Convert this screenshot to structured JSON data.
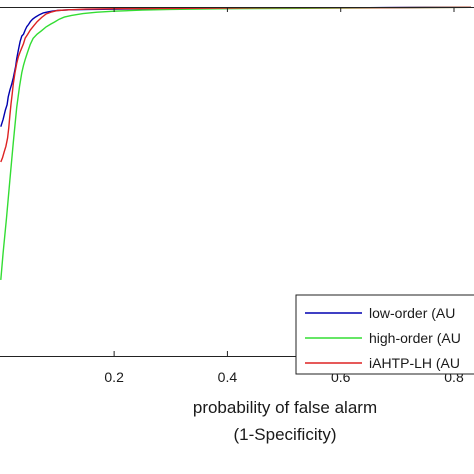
{
  "chart_data": {
    "type": "line",
    "xlabel_line1": "probability of false alarm",
    "xlabel_line2": "(1-Specificity)",
    "xlim": [
      -0.005,
      0.83
    ],
    "ylim": [
      0.0,
      1.0
    ],
    "x_ticks": [
      "0.2",
      "0.4",
      "0.6",
      "0.8"
    ],
    "grid": false,
    "legend_position": "bottom-right",
    "series": [
      {
        "name": "low-order (AU",
        "color": "#0000b0",
        "points": [
          [
            0.0,
            0.657
          ],
          [
            0.004,
            0.678
          ],
          [
            0.008,
            0.705
          ],
          [
            0.011,
            0.72
          ],
          [
            0.013,
            0.742
          ],
          [
            0.016,
            0.762
          ],
          [
            0.019,
            0.778
          ],
          [
            0.022,
            0.797
          ],
          [
            0.026,
            0.829
          ],
          [
            0.028,
            0.852
          ],
          [
            0.031,
            0.877
          ],
          [
            0.034,
            0.901
          ],
          [
            0.037,
            0.917
          ],
          [
            0.04,
            0.922
          ],
          [
            0.043,
            0.934
          ],
          [
            0.046,
            0.944
          ],
          [
            0.049,
            0.95
          ],
          [
            0.052,
            0.958
          ],
          [
            0.056,
            0.965
          ],
          [
            0.061,
            0.971
          ],
          [
            0.068,
            0.978
          ],
          [
            0.075,
            0.983
          ],
          [
            0.083,
            0.986
          ],
          [
            0.09,
            0.988
          ],
          [
            0.1,
            0.99
          ],
          [
            0.12,
            0.992
          ],
          [
            0.16,
            0.993
          ],
          [
            0.22,
            0.994
          ],
          [
            0.3,
            0.995
          ],
          [
            0.4,
            0.996
          ],
          [
            0.5,
            0.997
          ],
          [
            0.56,
            0.998
          ],
          [
            0.65,
            0.998
          ],
          [
            0.75,
            0.999
          ],
          [
            0.83,
            0.999
          ]
        ]
      },
      {
        "name": "high-order (AU",
        "color": "#33dd33",
        "points": [
          [
            0.0,
            0.218
          ],
          [
            0.004,
            0.295
          ],
          [
            0.01,
            0.395
          ],
          [
            0.016,
            0.505
          ],
          [
            0.022,
            0.612
          ],
          [
            0.028,
            0.712
          ],
          [
            0.033,
            0.772
          ],
          [
            0.037,
            0.812
          ],
          [
            0.04,
            0.833
          ],
          [
            0.043,
            0.85
          ],
          [
            0.047,
            0.87
          ],
          [
            0.052,
            0.893
          ],
          [
            0.057,
            0.91
          ],
          [
            0.064,
            0.922
          ],
          [
            0.072,
            0.932
          ],
          [
            0.08,
            0.943
          ],
          [
            0.088,
            0.951
          ],
          [
            0.095,
            0.957
          ],
          [
            0.103,
            0.965
          ],
          [
            0.112,
            0.971
          ],
          [
            0.125,
            0.976
          ],
          [
            0.145,
            0.981
          ],
          [
            0.17,
            0.985
          ],
          [
            0.2,
            0.988
          ],
          [
            0.25,
            0.991
          ],
          [
            0.3,
            0.993
          ],
          [
            0.35,
            0.994
          ],
          [
            0.4,
            0.995
          ],
          [
            0.5,
            0.996
          ],
          [
            0.6,
            0.997
          ],
          [
            0.7,
            0.998
          ],
          [
            0.83,
            0.999
          ]
        ]
      },
      {
        "name": "iAHTP-LH (AU",
        "color": "#dd2222",
        "points": [
          [
            0.0,
            0.556
          ],
          [
            0.003,
            0.568
          ],
          [
            0.006,
            0.585
          ],
          [
            0.009,
            0.601
          ],
          [
            0.012,
            0.625
          ],
          [
            0.014,
            0.655
          ],
          [
            0.016,
            0.69
          ],
          [
            0.018,
            0.722
          ],
          [
            0.02,
            0.751
          ],
          [
            0.022,
            0.78
          ],
          [
            0.025,
            0.812
          ],
          [
            0.028,
            0.838
          ],
          [
            0.031,
            0.858
          ],
          [
            0.034,
            0.871
          ],
          [
            0.037,
            0.883
          ],
          [
            0.04,
            0.895
          ],
          [
            0.043,
            0.911
          ],
          [
            0.047,
            0.921
          ],
          [
            0.052,
            0.934
          ],
          [
            0.058,
            0.946
          ],
          [
            0.064,
            0.958
          ],
          [
            0.072,
            0.97
          ],
          [
            0.08,
            0.98
          ],
          [
            0.09,
            0.986
          ],
          [
            0.1,
            0.99
          ],
          [
            0.12,
            0.992
          ],
          [
            0.15,
            0.994
          ],
          [
            0.2,
            0.995
          ],
          [
            0.3,
            0.996
          ],
          [
            0.4,
            0.997
          ],
          [
            0.5,
            0.998
          ],
          [
            0.65,
            0.998
          ],
          [
            0.83,
            0.999
          ]
        ]
      }
    ]
  }
}
